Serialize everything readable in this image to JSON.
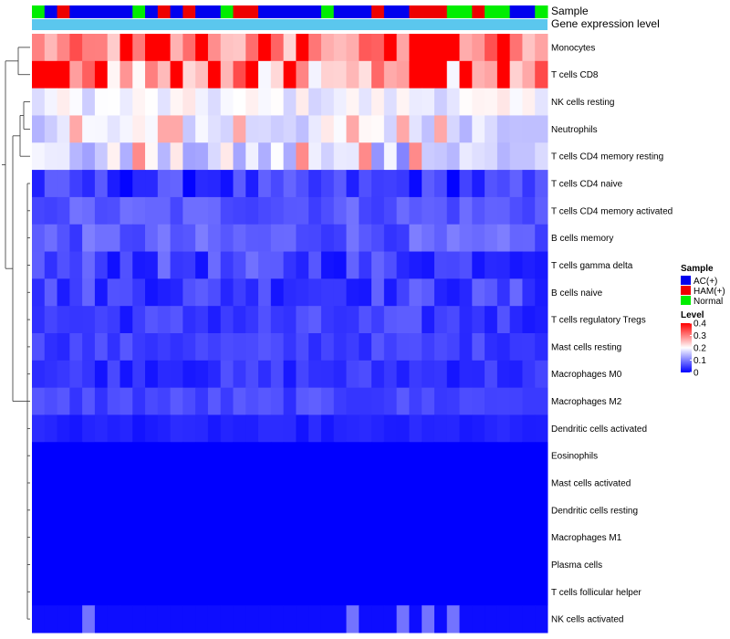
{
  "chart_data": {
    "type": "heatmap",
    "title": "",
    "annotation_tracks": [
      "Sample",
      "Gene expression level"
    ],
    "rows": [
      "Monocytes",
      "T cells CD8",
      "NK cells resting",
      "Neutrophils",
      "T cells CD4 memory resting",
      "T cells CD4 naive",
      "T cells CD4 memory activated",
      "B cells memory",
      "T cells gamma delta",
      "B cells naive",
      "T cells regulatory  Tregs",
      "Mast cells resting",
      "Macrophages M0",
      "Macrophages M2",
      "Dendritic cells activated",
      "Eosinophils",
      "Mast cells activated",
      "Dendritic cells resting",
      "Macrophages M1",
      "Plasma cells",
      "T cells follicular helper",
      "NK cells activated"
    ],
    "sample_groups": [
      "N",
      "A",
      "H",
      "A",
      "A",
      "A",
      "A",
      "A",
      "N",
      "A",
      "H",
      "A",
      "H",
      "A",
      "A",
      "N",
      "H",
      "H",
      "A",
      "A",
      "A",
      "A",
      "A",
      "N",
      "A",
      "A",
      "A",
      "H",
      "A",
      "A",
      "H",
      "H",
      "H",
      "N",
      "N",
      "H",
      "N",
      "N",
      "A",
      "A",
      "N"
    ],
    "group_legend": {
      "title": "Sample",
      "entries": [
        {
          "key": "A",
          "label": "AC(+)",
          "color": "#0000ee"
        },
        {
          "key": "H",
          "label": "HAM(+)",
          "color": "#ee0000"
        },
        {
          "key": "N",
          "label": "Normal",
          "color": "#00ee00"
        }
      ]
    },
    "color_scale": {
      "title": "Level",
      "min": 0,
      "max": 0.4,
      "ticks": [
        {
          "value": 0.4,
          "label": "0.4"
        },
        {
          "value": 0.3,
          "label": "0.3"
        },
        {
          "value": 0.2,
          "label": "0.2"
        },
        {
          "value": 0.1,
          "label": "0.1"
        },
        {
          "value": 0,
          "label": "0"
        }
      ],
      "colors": {
        "low": "#0000ff",
        "mid": "#ffffff",
        "high": "#ff0000"
      },
      "mid_value": 0.2
    },
    "expression_track_color": "#5bc7ee",
    "row_means": [
      0.28,
      0.27,
      0.19,
      0.18,
      0.16,
      0.04,
      0.07,
      0.07,
      0.05,
      0.05,
      0.045,
      0.05,
      0.04,
      0.055,
      0.025,
      0.0,
      0.0,
      0.0,
      0.0,
      0.0,
      0.0,
      0.01
    ],
    "row_spread": [
      0.06,
      0.08,
      0.03,
      0.04,
      0.06,
      0.04,
      0.025,
      0.03,
      0.04,
      0.035,
      0.03,
      0.02,
      0.025,
      0.02,
      0.01,
      0.0,
      0.0,
      0.0,
      0.0,
      0.0,
      0.0,
      0.0
    ],
    "row_peak_cols": [
      [
        7,
        9,
        10,
        13,
        18,
        21,
        28,
        30,
        31,
        32,
        33,
        37
      ],
      [
        0,
        1,
        2,
        5,
        11,
        14,
        17,
        20,
        30,
        31,
        32,
        34,
        37
      ],
      [],
      [
        3,
        10,
        11,
        16,
        25,
        29,
        32
      ],
      [
        8,
        21,
        26,
        30
      ],
      [],
      [],
      [],
      [],
      [],
      [],
      [],
      [],
      [],
      [],
      [],
      [],
      [],
      [],
      [],
      [],
      [
        4,
        25,
        29,
        31,
        33
      ]
    ]
  }
}
